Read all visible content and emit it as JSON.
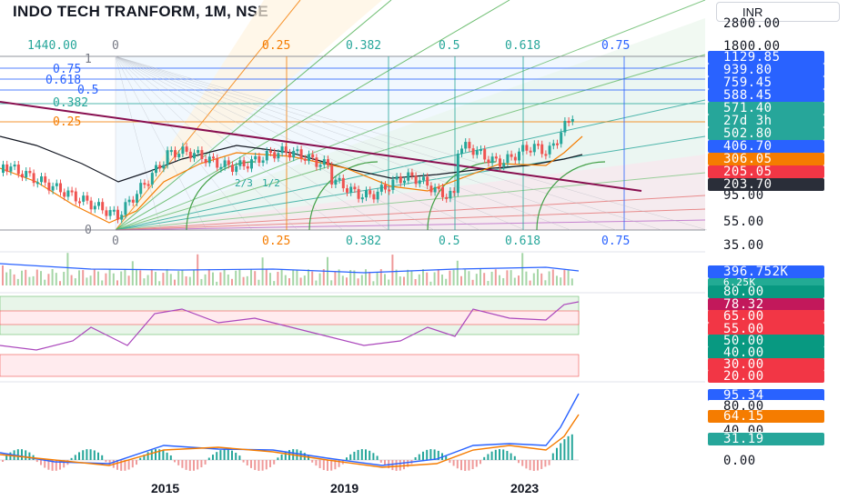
{
  "header": {
    "title": "INDO TECH TRANFORM, 1M, NSE",
    "currency": "INR"
  },
  "price_axis": {
    "ticks": [
      "2800.00",
      "1800.00",
      "95.00",
      "55.00",
      "35.00"
    ]
  },
  "price_badges": [
    {
      "label": "1129.85",
      "color": "#2962ff"
    },
    {
      "label": "939.80",
      "color": "#2962ff"
    },
    {
      "label": "759.45",
      "color": "#2962ff"
    },
    {
      "label": "588.45",
      "color": "#2962ff"
    },
    {
      "label": "571.40",
      "color": "#26a69a"
    },
    {
      "label": "27d 3h",
      "color": "#26a69a"
    },
    {
      "label": "502.80",
      "color": "#26a69a"
    },
    {
      "label": "406.70",
      "color": "#2962ff"
    },
    {
      "label": "306.05",
      "color": "#f57c00"
    },
    {
      "label": "205.05",
      "color": "#f23645"
    },
    {
      "label": "203.70",
      "color": "#2a2e39"
    }
  ],
  "volume_badges": [
    {
      "label": "396.752K",
      "color": "#2962ff"
    },
    {
      "label": "6.25K",
      "color": "#22ab94"
    }
  ],
  "rsi_badges": [
    {
      "label": "80.00",
      "color": "#089981"
    },
    {
      "label": "78.32",
      "color": "#c2185b"
    },
    {
      "label": "65.00",
      "color": "#f23645"
    },
    {
      "label": "55.00",
      "color": "#f23645"
    },
    {
      "label": "50.00",
      "color": "#089981"
    },
    {
      "label": "40.00",
      "color": "#089981"
    },
    {
      "label": "30.00",
      "color": "#f23645"
    },
    {
      "label": "20.00",
      "color": "#f23645"
    }
  ],
  "macd_badges": [
    {
      "label": "95.34",
      "color": "#2962ff"
    },
    {
      "label": "80.00",
      "color": "#ffffff"
    },
    {
      "label": "64.15",
      "color": "#f57c00"
    },
    {
      "label": "40.00",
      "color": "#ffffff"
    },
    {
      "label": "31.19",
      "color": "#26a69a"
    },
    {
      "label": "0.00",
      "color": "#ffffff"
    }
  ],
  "fib_top_labels": [
    {
      "text": "1440.00",
      "color": "#26a69a"
    },
    {
      "text": "0",
      "color": "#787b86"
    },
    {
      "text": "0.25",
      "color": "#f57c00"
    },
    {
      "text": "0.382",
      "color": "#26a69a"
    },
    {
      "text": "0.5",
      "color": "#26a69a"
    },
    {
      "text": "0.618",
      "color": "#26a69a"
    },
    {
      "text": "0.75",
      "color": "#2962ff"
    }
  ],
  "fib_bottom_labels": [
    {
      "text": "0",
      "color": "#787b86"
    },
    {
      "text": "0.25",
      "color": "#f57c00"
    },
    {
      "text": "0.382",
      "color": "#26a69a"
    },
    {
      "text": "0.5",
      "color": "#26a69a"
    },
    {
      "text": "0.618",
      "color": "#26a69a"
    },
    {
      "text": "0.75",
      "color": "#2962ff"
    }
  ],
  "fib_left_labels": [
    {
      "text": "1",
      "color": "#787b86"
    },
    {
      "text": "0.75",
      "color": "#2962ff"
    },
    {
      "text": "0.618",
      "color": "#2962ff"
    },
    {
      "text": "0.5",
      "color": "#2962ff"
    },
    {
      "text": "0.382",
      "color": "#26a69a"
    },
    {
      "text": "0.25",
      "color": "#f57c00"
    },
    {
      "text": "0",
      "color": "#787b86"
    }
  ],
  "chart_annotations": [
    "2/3",
    "1/2"
  ],
  "x_axis": [
    "2015",
    "2019",
    "2023"
  ]
}
